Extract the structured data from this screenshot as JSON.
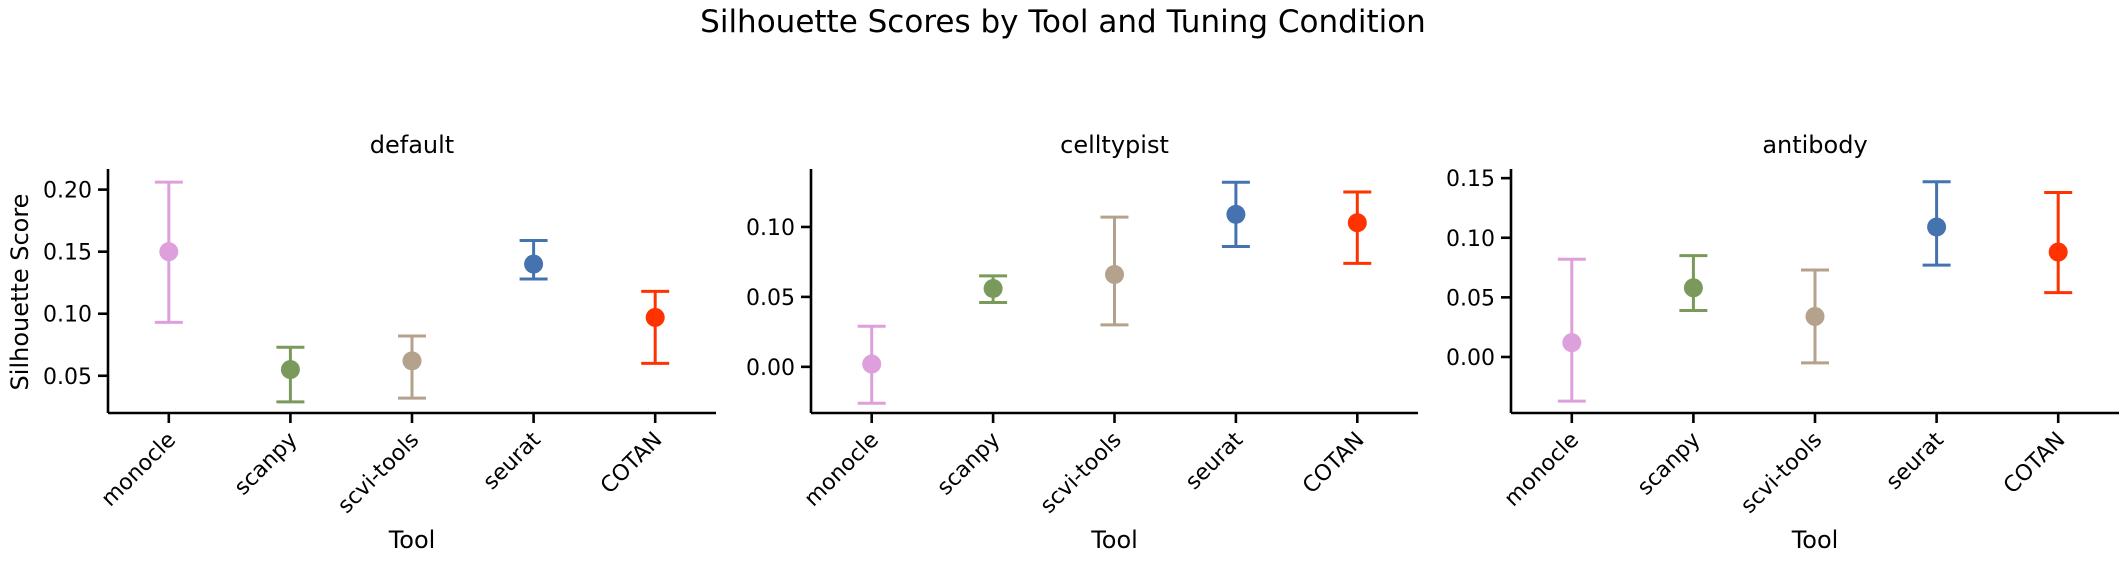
{
  "figure": {
    "title": "Silhouette Scores by Tool and Tuning Condition"
  },
  "chart_data": [
    {
      "type": "errorbar",
      "title": "default",
      "xlabel": "Tool",
      "ylabel": "Silhouette Score",
      "categories": [
        "monocle",
        "scanpy",
        "scvi-tools",
        "seurat",
        "COTAN"
      ],
      "values": [
        0.15,
        0.055,
        0.062,
        0.14,
        0.097
      ],
      "error_low": [
        0.093,
        0.029,
        0.032,
        0.128,
        0.06
      ],
      "error_high": [
        0.206,
        0.073,
        0.082,
        0.159,
        0.118
      ],
      "ylim": [
        0.02,
        0.215
      ],
      "yticks": [
        0.05,
        0.1,
        0.15,
        0.2
      ],
      "ytick_labels": [
        "0.05",
        "0.10",
        "0.15",
        "0.20"
      ],
      "colors": [
        "#DDA0DD",
        "#7A9A5B",
        "#B5A28C",
        "#4573B0",
        "#FF3300"
      ]
    },
    {
      "type": "errorbar",
      "title": "celltypist",
      "xlabel": "Tool",
      "ylabel": "",
      "categories": [
        "monocle",
        "scanpy",
        "scvi-tools",
        "seurat",
        "COTAN"
      ],
      "values": [
        0.002,
        0.056,
        0.066,
        0.109,
        0.103
      ],
      "error_low": [
        -0.026,
        0.046,
        0.03,
        0.086,
        0.074
      ],
      "error_high": [
        0.029,
        0.065,
        0.107,
        0.132,
        0.125
      ],
      "ylim": [
        -0.033,
        0.14
      ],
      "yticks": [
        0.0,
        0.05,
        0.1
      ],
      "ytick_labels": [
        "0.00",
        "0.05",
        "0.10"
      ],
      "colors": [
        "#DDA0DD",
        "#7A9A5B",
        "#B5A28C",
        "#4573B0",
        "#FF3300"
      ]
    },
    {
      "type": "errorbar",
      "title": "antibody",
      "xlabel": "Tool",
      "ylabel": "",
      "categories": [
        "monocle",
        "scanpy",
        "scvi-tools",
        "seurat",
        "COTAN"
      ],
      "values": [
        0.012,
        0.058,
        0.034,
        0.109,
        0.088
      ],
      "error_low": [
        -0.037,
        0.039,
        -0.005,
        0.077,
        0.054
      ],
      "error_high": [
        0.082,
        0.085,
        0.073,
        0.147,
        0.138
      ],
      "ylim": [
        -0.047,
        0.156
      ],
      "yticks": [
        0.0,
        0.05,
        0.1,
        0.15
      ],
      "ytick_labels": [
        "0.00",
        "0.05",
        "0.10",
        "0.15"
      ],
      "colors": [
        "#DDA0DD",
        "#7A9A5B",
        "#B5A28C",
        "#4573B0",
        "#FF3300"
      ]
    }
  ]
}
